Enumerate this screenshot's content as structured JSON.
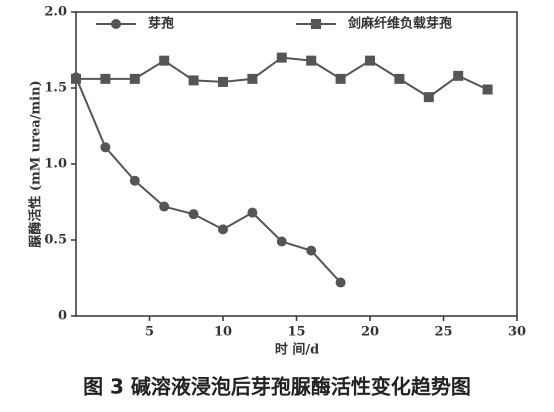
{
  "chart_data": {
    "type": "line",
    "x_label": "时 间/d",
    "y_label": "脲酶活性 (mM urea/min)",
    "caption": "图 3 碱溶液浸泡后芽孢脲酶活性变化趋势图",
    "series": [
      {
        "name": "芽孢",
        "color": "#555555",
        "marker": "circle",
        "x": [
          0,
          2,
          4,
          6,
          8,
          10,
          12,
          14,
          16,
          18
        ],
        "values": [
          1.57,
          1.11,
          0.89,
          0.72,
          0.67,
          0.57,
          0.68,
          0.49,
          0.43,
          0.22
        ]
      },
      {
        "name": "剑麻纤维负载芽孢",
        "color": "#555555",
        "marker": "square",
        "x": [
          0,
          2,
          4,
          6,
          8,
          10,
          12,
          14,
          16,
          18,
          20,
          22,
          24,
          26,
          28
        ],
        "values": [
          1.56,
          1.56,
          1.56,
          1.68,
          1.55,
          1.54,
          1.56,
          1.7,
          1.68,
          1.56,
          1.68,
          1.56,
          1.44,
          1.58,
          1.49
        ]
      }
    ],
    "xlim": [
      0,
      30
    ],
    "xticks": [
      5,
      10,
      15,
      20,
      25,
      30
    ],
    "ylim": [
      0,
      2.0
    ],
    "yticks": [
      0,
      0.5,
      {
        "value": 1.0,
        "label": "1.0"
      },
      1.5,
      {
        "value": 2.0,
        "label": "2.0"
      }
    ],
    "legend": "top"
  }
}
